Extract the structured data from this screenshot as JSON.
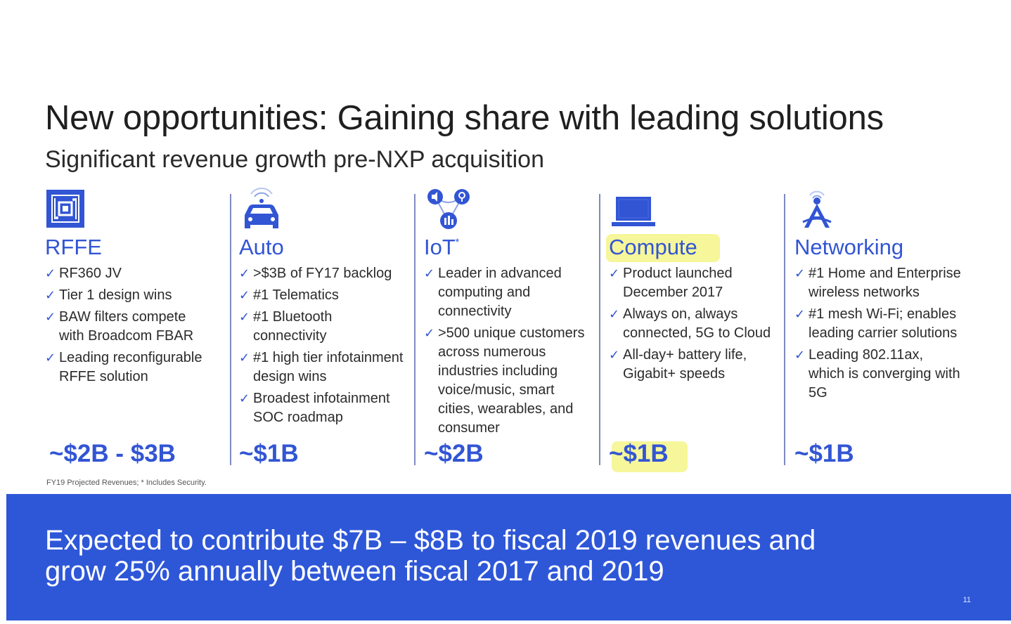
{
  "slide": {
    "title": "New opportunities: Gaining share with leading solutions",
    "subtitle": "Significant revenue growth pre-NXP acquisition",
    "footnote": "FY19 Projected Revenues; * Includes Security.",
    "page_number": "11",
    "accent_color": "#3255d4",
    "banner_color": "#2e57d8",
    "highlight_color": "#f6f69a"
  },
  "banner": {
    "line1": "Expected to contribute $7B – $8B to fiscal 2019 revenues and",
    "line2": "grow 25% annually between fiscal 2017 and 2019"
  },
  "columns": [
    {
      "name": "RFFE",
      "icon": "chip-icon",
      "bullets": [
        [
          "RF360 JV"
        ],
        [
          "Tier 1 design wins"
        ],
        [
          "BAW filters compete",
          "with Broadcom FBAR"
        ],
        [
          "Leading reconfigurable",
          "RFFE solution"
        ]
      ],
      "value": "~$2B - $3B"
    },
    {
      "name": "Auto",
      "icon": "car-icon",
      "bullets": [
        [
          ">$3B of FY17 backlog"
        ],
        [
          "#1 Telematics"
        ],
        [
          "#1 Bluetooth",
          "connectivity"
        ],
        [
          "#1 high tier infotainment",
          "design wins"
        ],
        [
          "Broadest infotainment",
          "SOC roadmap"
        ]
      ],
      "value": "~$1B"
    },
    {
      "name": "IoT",
      "name_sup": "*",
      "icon": "iot-devices-icon",
      "bullets": [
        [
          "Leader in advanced",
          "computing and",
          "connectivity"
        ],
        [
          ">500 unique customers",
          "across numerous",
          "industries including",
          "voice/music, smart",
          "cities, wearables, and",
          "consumer"
        ]
      ],
      "value": "~$2B"
    },
    {
      "name": "Compute",
      "icon": "laptop-icon",
      "bullets": [
        [
          "Product launched",
          "December 2017"
        ],
        [
          "Always on, always",
          "connected, 5G to Cloud"
        ],
        [
          "All-day+ battery life,",
          "Gigabit+ speeds"
        ]
      ],
      "value": "~$1B"
    },
    {
      "name": "Networking",
      "icon": "antenna-tower-icon",
      "bullets": [
        [
          "#1 Home and Enterprise",
          "wireless networks"
        ],
        [
          "#1 mesh Wi-Fi; enables",
          "leading carrier solutions"
        ],
        [
          "Leading 802.11ax,",
          "which is converging with",
          "5G"
        ]
      ],
      "value": "~$1B"
    }
  ]
}
